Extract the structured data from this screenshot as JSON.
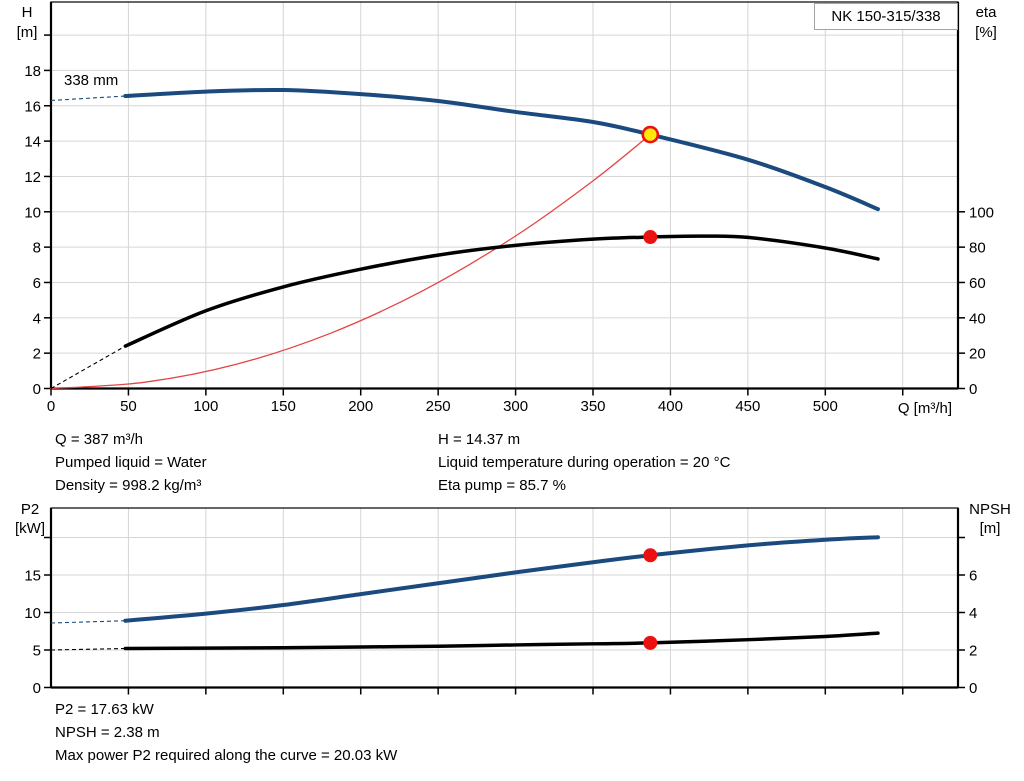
{
  "meta": {
    "pump_name": "NK 150-315/338",
    "impeller_label": "338 mm"
  },
  "colors": {
    "curve_blue": "#1a4a7e",
    "curve_black": "#000000",
    "system_red": "#e64444",
    "dot_red": "#ec1111",
    "dot_yellow": "#ffe80a",
    "grid": "#d6d6d6",
    "axis": "#000000",
    "box_border": "#a3a3a3"
  },
  "annotations": {
    "duty_left": [
      "Q = 387 m³/h",
      "Pumped liquid = Water",
      "Density = 998.2 kg/m³"
    ],
    "duty_right": [
      "H = 14.37 m",
      "Liquid temperature during operation = 20 °C",
      "Eta pump = 85.7 %"
    ],
    "power": [
      "P2 = 17.63 kW",
      "NPSH = 2.38 m",
      "Max power P2 required along the curve = 20.03 kW"
    ]
  },
  "chart_data": [
    {
      "type": "line",
      "title": "NK 150-315/338",
      "x_axis": {
        "label": "Q [m³/h]",
        "range": [
          0,
          586
        ],
        "ticks": [
          {
            "q": 0,
            "label": "0"
          },
          {
            "q": 50,
            "label": "50"
          },
          {
            "q": 100,
            "label": "100"
          },
          {
            "q": 150,
            "label": "150"
          },
          {
            "q": 200,
            "label": "200"
          },
          {
            "q": 250,
            "label": "250"
          },
          {
            "q": 300,
            "label": "300"
          },
          {
            "q": 350,
            "label": "350"
          },
          {
            "q": 400,
            "label": "400"
          },
          {
            "q": 450,
            "label": "450"
          },
          {
            "q": 500,
            "label": "500"
          },
          {
            "q": 550,
            "label": ""
          }
        ]
      },
      "left_axis": {
        "label_lines": [
          "H",
          "[m]"
        ],
        "range": [
          0,
          21.9
        ],
        "ticks": [
          {
            "v": 0,
            "label": "0"
          },
          {
            "v": 2,
            "label": "2"
          },
          {
            "v": 4,
            "label": "4"
          },
          {
            "v": 6,
            "label": "6"
          },
          {
            "v": 8,
            "label": "8"
          },
          {
            "v": 10,
            "label": "10"
          },
          {
            "v": 12,
            "label": "12"
          },
          {
            "v": 14,
            "label": "14"
          },
          {
            "v": 16,
            "label": "16"
          },
          {
            "v": 18,
            "label": "18"
          },
          {
            "v": 20,
            "label": ""
          }
        ]
      },
      "right_axis": {
        "label_lines": [
          "eta",
          "[%]"
        ],
        "range": [
          0,
          100
        ],
        "ticks": [
          {
            "v": 0,
            "label": "0"
          },
          {
            "v": 20,
            "label": "20"
          },
          {
            "v": 40,
            "label": "40"
          },
          {
            "v": 60,
            "label": "60"
          },
          {
            "v": 80,
            "label": "80"
          },
          {
            "v": 100,
            "label": "100"
          }
        ]
      },
      "series": [
        {
          "name": "system-curve",
          "axis": "left",
          "color": "system_red",
          "width": 1.3,
          "points": [
            [
              0,
              0
            ],
            [
              60,
              0.35
            ],
            [
              120,
              1.38
            ],
            [
              180,
              3.11
            ],
            [
              240,
              5.53
            ],
            [
              300,
              8.63
            ],
            [
              350,
              11.75
            ],
            [
              387,
              14.37
            ]
          ]
        },
        {
          "name": "efficiency-curve",
          "axis": "right",
          "color": "curve_black",
          "width": 3.5,
          "dash_lead": [
            [
              0,
              0
            ],
            [
              48,
              24
            ]
          ],
          "points": [
            [
              48,
              24
            ],
            [
              100,
              44
            ],
            [
              150,
              57.5
            ],
            [
              200,
              67.5
            ],
            [
              250,
              75.5
            ],
            [
              300,
              81
            ],
            [
              350,
              84.5
            ],
            [
              387,
              85.7
            ],
            [
              420,
              86.2
            ],
            [
              450,
              85.5
            ],
            [
              500,
              79.5
            ],
            [
              534,
              73.3
            ]
          ]
        },
        {
          "name": "head-curve",
          "axis": "left",
          "color": "curve_blue",
          "width": 4,
          "dash_lead": [
            [
              0,
              16.3
            ],
            [
              48,
              16.55
            ]
          ],
          "points": [
            [
              48,
              16.55
            ],
            [
              100,
              16.8
            ],
            [
              150,
              16.89
            ],
            [
              200,
              16.66
            ],
            [
              250,
              16.27
            ],
            [
              300,
              15.65
            ],
            [
              350,
              15.08
            ],
            [
              387,
              14.37
            ],
            [
              450,
              12.95
            ],
            [
              500,
              11.4
            ],
            [
              534,
              10.15
            ]
          ]
        }
      ],
      "markers": [
        {
          "name": "duty-point",
          "q": 387,
          "v": 14.37,
          "axis": "left",
          "style": "yellow"
        },
        {
          "name": "eta-point",
          "q": 387,
          "v": 85.7,
          "axis": "right",
          "style": "red"
        }
      ]
    },
    {
      "type": "line",
      "title": "",
      "x_axis": {
        "label": "",
        "range": [
          0,
          586
        ],
        "ticks": [
          {
            "q": 50,
            "label": ""
          },
          {
            "q": 100,
            "label": ""
          },
          {
            "q": 150,
            "label": ""
          },
          {
            "q": 200,
            "label": ""
          },
          {
            "q": 250,
            "label": ""
          },
          {
            "q": 300,
            "label": ""
          },
          {
            "q": 350,
            "label": ""
          },
          {
            "q": 400,
            "label": ""
          },
          {
            "q": 450,
            "label": ""
          },
          {
            "q": 500,
            "label": ""
          },
          {
            "q": 550,
            "label": ""
          }
        ]
      },
      "left_axis": {
        "label_lines": [
          "P2",
          "[kW]"
        ],
        "range": [
          0,
          23.9
        ],
        "ticks": [
          {
            "v": 0,
            "label": "0"
          },
          {
            "v": 5,
            "label": "5"
          },
          {
            "v": 10,
            "label": "10"
          },
          {
            "v": 15,
            "label": "15"
          },
          {
            "v": 20,
            "label": ""
          }
        ]
      },
      "right_axis": {
        "label_lines": [
          "NPSH",
          "[m]"
        ],
        "range": [
          0,
          9.56
        ],
        "ticks": [
          {
            "v": 0,
            "label": "0"
          },
          {
            "v": 2,
            "label": "2"
          },
          {
            "v": 4,
            "label": "4"
          },
          {
            "v": 6,
            "label": "6"
          },
          {
            "v": 8,
            "label": ""
          }
        ]
      },
      "series": [
        {
          "name": "npsh-curve",
          "axis": "right",
          "color": "curve_black",
          "width": 3.5,
          "dash_lead": [
            [
              0,
              2.0
            ],
            [
              48,
              2.08
            ]
          ],
          "points": [
            [
              48,
              2.08
            ],
            [
              100,
              2.1
            ],
            [
              150,
              2.12
            ],
            [
              200,
              2.16
            ],
            [
              250,
              2.2
            ],
            [
              300,
              2.27
            ],
            [
              350,
              2.33
            ],
            [
              387,
              2.38
            ],
            [
              450,
              2.55
            ],
            [
              500,
              2.72
            ],
            [
              534,
              2.9
            ]
          ]
        },
        {
          "name": "p2-curve",
          "axis": "left",
          "color": "curve_blue",
          "width": 4,
          "dash_lead": [
            [
              0,
              8.6
            ],
            [
              48,
              8.9
            ]
          ],
          "points": [
            [
              48,
              8.9
            ],
            [
              100,
              9.85
            ],
            [
              150,
              11.0
            ],
            [
              200,
              12.45
            ],
            [
              250,
              13.9
            ],
            [
              300,
              15.35
            ],
            [
              350,
              16.7
            ],
            [
              387,
              17.63
            ],
            [
              450,
              18.95
            ],
            [
              500,
              19.7
            ],
            [
              534,
              20.03
            ]
          ]
        }
      ],
      "markers": [
        {
          "name": "p2-point",
          "q": 387,
          "v": 17.63,
          "axis": "left",
          "style": "red"
        },
        {
          "name": "npsh-point",
          "q": 387,
          "v": 2.38,
          "axis": "right",
          "style": "red"
        }
      ]
    }
  ]
}
